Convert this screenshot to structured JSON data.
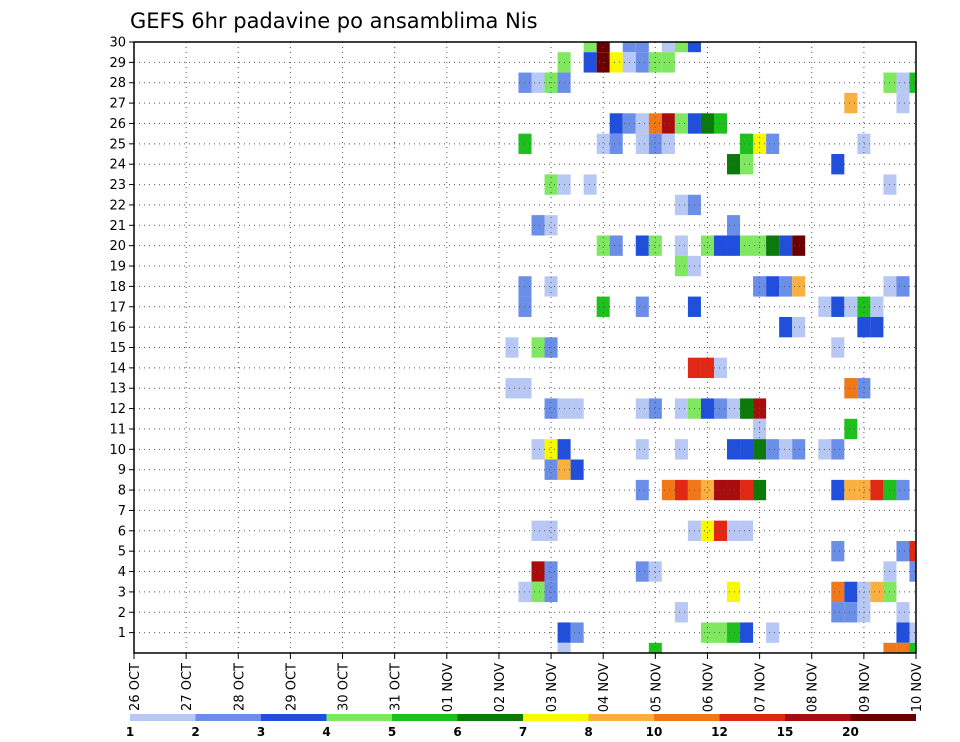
{
  "chart_data": {
    "type": "heatmap",
    "title": "GEFS 6hr padavine po ansamblima Nis",
    "xlabel": "",
    "ylabel": "",
    "x_tick_labels": [
      "26 OCT",
      "27 OCT",
      "28 OCT",
      "29 OCT",
      "30 OCT",
      "31 OCT",
      "01 NOV",
      "02 NOV",
      "03 NOV",
      "04 NOV",
      "05 NOV",
      "06 NOV",
      "07 NOV",
      "08 NOV",
      "09 NOV",
      "10 NOV"
    ],
    "x_range_days": [
      0,
      15
    ],
    "y_tick_labels": [
      1,
      2,
      3,
      4,
      5,
      6,
      7,
      8,
      9,
      10,
      11,
      12,
      13,
      14,
      15,
      16,
      17,
      18,
      19,
      20,
      21,
      22,
      23,
      24,
      25,
      26,
      27,
      28,
      29,
      30
    ],
    "y_range": [
      0,
      30
    ],
    "grid": true,
    "colorbar": {
      "labels": [
        "1",
        "2",
        "3",
        "4",
        "5",
        "6",
        "7",
        "8",
        "10",
        "12",
        "15",
        "20"
      ],
      "colors": [
        "#b8c8f4",
        "#6b8ee8",
        "#1f4fdc",
        "#7fe860",
        "#1ec01e",
        "#0b7a0b",
        "#f8f800",
        "#f8b040",
        "#f07818",
        "#e02814",
        "#a80c0c",
        "#6a0000"
      ]
    },
    "cells": [
      {
        "member": 30,
        "day": 8.75,
        "class": 3
      },
      {
        "member": 30,
        "day": 9.0,
        "class": 11
      },
      {
        "member": 30,
        "day": 9.5,
        "class": 1
      },
      {
        "member": 30,
        "day": 9.75,
        "class": 1
      },
      {
        "member": 30,
        "day": 10.25,
        "class": 0
      },
      {
        "member": 30,
        "day": 10.5,
        "class": 3
      },
      {
        "member": 30,
        "day": 10.75,
        "class": 2
      },
      {
        "member": 29,
        "day": 8.25,
        "class": 3
      },
      {
        "member": 29,
        "day": 8.75,
        "class": 2
      },
      {
        "member": 29,
        "day": 9.0,
        "class": 11
      },
      {
        "member": 29,
        "day": 9.25,
        "class": 6
      },
      {
        "member": 29,
        "day": 9.5,
        "class": 0
      },
      {
        "member": 29,
        "day": 9.75,
        "class": 1
      },
      {
        "member": 29,
        "day": 10.0,
        "class": 3
      },
      {
        "member": 29,
        "day": 10.25,
        "class": 3
      },
      {
        "member": 28,
        "day": 7.5,
        "class": 1
      },
      {
        "member": 28,
        "day": 7.75,
        "class": 0
      },
      {
        "member": 28,
        "day": 8.0,
        "class": 3
      },
      {
        "member": 28,
        "day": 8.25,
        "class": 1
      },
      {
        "member": 28,
        "day": 14.5,
        "class": 3
      },
      {
        "member": 28,
        "day": 14.75,
        "class": 0
      },
      {
        "member": 28,
        "day": 15.0,
        "class": 4
      },
      {
        "member": 27,
        "day": 13.75,
        "class": 7
      },
      {
        "member": 27,
        "day": 14.75,
        "class": 0
      },
      {
        "member": 26,
        "day": 9.25,
        "class": 2
      },
      {
        "member": 26,
        "day": 9.5,
        "class": 1
      },
      {
        "member": 26,
        "day": 9.75,
        "class": 0
      },
      {
        "member": 26,
        "day": 10.0,
        "class": 8
      },
      {
        "member": 26,
        "day": 10.25,
        "class": 10
      },
      {
        "member": 26,
        "day": 10.5,
        "class": 3
      },
      {
        "member": 26,
        "day": 10.75,
        "class": 2
      },
      {
        "member": 26,
        "day": 11.0,
        "class": 5
      },
      {
        "member": 26,
        "day": 11.25,
        "class": 4
      },
      {
        "member": 25,
        "day": 7.5,
        "class": 4
      },
      {
        "member": 25,
        "day": 9.0,
        "class": 0
      },
      {
        "member": 25,
        "day": 9.25,
        "class": 1
      },
      {
        "member": 25,
        "day": 9.75,
        "class": 0
      },
      {
        "member": 25,
        "day": 10.0,
        "class": 1
      },
      {
        "member": 25,
        "day": 10.25,
        "class": 0
      },
      {
        "member": 25,
        "day": 11.75,
        "class": 4
      },
      {
        "member": 25,
        "day": 12.0,
        "class": 6
      },
      {
        "member": 25,
        "day": 12.25,
        "class": 1
      },
      {
        "member": 25,
        "day": 14.0,
        "class": 0
      },
      {
        "member": 24,
        "day": 11.5,
        "class": 5
      },
      {
        "member": 24,
        "day": 11.75,
        "class": 3
      },
      {
        "member": 24,
        "day": 13.5,
        "class": 2
      },
      {
        "member": 23,
        "day": 8.0,
        "class": 3
      },
      {
        "member": 23,
        "day": 8.25,
        "class": 0
      },
      {
        "member": 23,
        "day": 8.75,
        "class": 0
      },
      {
        "member": 23,
        "day": 14.5,
        "class": 0
      },
      {
        "member": 22,
        "day": 10.5,
        "class": 0
      },
      {
        "member": 22,
        "day": 10.75,
        "class": 1
      },
      {
        "member": 21,
        "day": 7.75,
        "class": 1
      },
      {
        "member": 21,
        "day": 8.0,
        "class": 0
      },
      {
        "member": 21,
        "day": 11.5,
        "class": 1
      },
      {
        "member": 20,
        "day": 9.0,
        "class": 3
      },
      {
        "member": 20,
        "day": 9.25,
        "class": 1
      },
      {
        "member": 20,
        "day": 9.75,
        "class": 2
      },
      {
        "member": 20,
        "day": 10.0,
        "class": 3
      },
      {
        "member": 20,
        "day": 10.5,
        "class": 0
      },
      {
        "member": 20,
        "day": 11.0,
        "class": 3
      },
      {
        "member": 20,
        "day": 11.25,
        "class": 2
      },
      {
        "member": 20,
        "day": 11.5,
        "class": 2
      },
      {
        "member": 20,
        "day": 11.75,
        "class": 3
      },
      {
        "member": 20,
        "day": 12.0,
        "class": 3
      },
      {
        "member": 20,
        "day": 12.25,
        "class": 5
      },
      {
        "member": 20,
        "day": 12.5,
        "class": 2
      },
      {
        "member": 20,
        "day": 12.75,
        "class": 11
      },
      {
        "member": 19,
        "day": 10.5,
        "class": 3
      },
      {
        "member": 19,
        "day": 10.75,
        "class": 0
      },
      {
        "member": 18,
        "day": 7.5,
        "class": 1
      },
      {
        "member": 18,
        "day": 8.0,
        "class": 0
      },
      {
        "member": 18,
        "day": 12.0,
        "class": 1
      },
      {
        "member": 18,
        "day": 12.25,
        "class": 2
      },
      {
        "member": 18,
        "day": 12.5,
        "class": 1
      },
      {
        "member": 18,
        "day": 12.75,
        "class": 7
      },
      {
        "member": 18,
        "day": 14.5,
        "class": 0
      },
      {
        "member": 18,
        "day": 14.75,
        "class": 1
      },
      {
        "member": 17,
        "day": 7.5,
        "class": 1
      },
      {
        "member": 17,
        "day": 9.0,
        "class": 4
      },
      {
        "member": 17,
        "day": 9.75,
        "class": 1
      },
      {
        "member": 17,
        "day": 10.75,
        "class": 2
      },
      {
        "member": 17,
        "day": 13.25,
        "class": 0
      },
      {
        "member": 17,
        "day": 13.5,
        "class": 2
      },
      {
        "member": 17,
        "day": 13.75,
        "class": 0
      },
      {
        "member": 17,
        "day": 14.0,
        "class": 4
      },
      {
        "member": 17,
        "day": 14.25,
        "class": 0
      },
      {
        "member": 16,
        "day": 12.5,
        "class": 2
      },
      {
        "member": 16,
        "day": 12.75,
        "class": 0
      },
      {
        "member": 16,
        "day": 14.0,
        "class": 2
      },
      {
        "member": 16,
        "day": 14.25,
        "class": 2
      },
      {
        "member": 15,
        "day": 7.25,
        "class": 0
      },
      {
        "member": 15,
        "day": 7.75,
        "class": 3
      },
      {
        "member": 15,
        "day": 8.0,
        "class": 1
      },
      {
        "member": 15,
        "day": 13.5,
        "class": 0
      },
      {
        "member": 14,
        "day": 10.75,
        "class": 9
      },
      {
        "member": 14,
        "day": 11.0,
        "class": 9
      },
      {
        "member": 14,
        "day": 11.25,
        "class": 0
      },
      {
        "member": 13,
        "day": 7.25,
        "class": 0
      },
      {
        "member": 13,
        "day": 7.5,
        "class": 0
      },
      {
        "member": 13,
        "day": 13.75,
        "class": 8
      },
      {
        "member": 13,
        "day": 14.0,
        "class": 1
      },
      {
        "member": 12,
        "day": 8.0,
        "class": 1
      },
      {
        "member": 12,
        "day": 8.25,
        "class": 0
      },
      {
        "member": 12,
        "day": 8.5,
        "class": 0
      },
      {
        "member": 12,
        "day": 9.75,
        "class": 0
      },
      {
        "member": 12,
        "day": 10.0,
        "class": 1
      },
      {
        "member": 12,
        "day": 10.5,
        "class": 0
      },
      {
        "member": 12,
        "day": 10.75,
        "class": 3
      },
      {
        "member": 12,
        "day": 11.0,
        "class": 2
      },
      {
        "member": 12,
        "day": 11.25,
        "class": 1
      },
      {
        "member": 12,
        "day": 11.5,
        "class": 0
      },
      {
        "member": 12,
        "day": 11.75,
        "class": 5
      },
      {
        "member": 12,
        "day": 12.0,
        "class": 10
      },
      {
        "member": 11,
        "day": 12.0,
        "class": 0
      },
      {
        "member": 11,
        "day": 13.75,
        "class": 4
      },
      {
        "member": 10,
        "day": 7.75,
        "class": 0
      },
      {
        "member": 10,
        "day": 8.0,
        "class": 6
      },
      {
        "member": 10,
        "day": 8.25,
        "class": 2
      },
      {
        "member": 10,
        "day": 9.75,
        "class": 0
      },
      {
        "member": 10,
        "day": 10.5,
        "class": 0
      },
      {
        "member": 10,
        "day": 11.5,
        "class": 2
      },
      {
        "member": 10,
        "day": 11.75,
        "class": 2
      },
      {
        "member": 10,
        "day": 12.0,
        "class": 5
      },
      {
        "member": 10,
        "day": 12.25,
        "class": 1
      },
      {
        "member": 10,
        "day": 12.5,
        "class": 0
      },
      {
        "member": 10,
        "day": 12.75,
        "class": 1
      },
      {
        "member": 10,
        "day": 13.25,
        "class": 0
      },
      {
        "member": 10,
        "day": 13.5,
        "class": 1
      },
      {
        "member": 9,
        "day": 8.0,
        "class": 1
      },
      {
        "member": 9,
        "day": 8.25,
        "class": 7
      },
      {
        "member": 9,
        "day": 8.5,
        "class": 2
      },
      {
        "member": 8,
        "day": 9.75,
        "class": 1
      },
      {
        "member": 8,
        "day": 10.25,
        "class": 8
      },
      {
        "member": 8,
        "day": 10.5,
        "class": 9
      },
      {
        "member": 8,
        "day": 10.75,
        "class": 8
      },
      {
        "member": 8,
        "day": 11.0,
        "class": 7
      },
      {
        "member": 8,
        "day": 11.25,
        "class": 10
      },
      {
        "member": 8,
        "day": 11.5,
        "class": 10
      },
      {
        "member": 8,
        "day": 11.75,
        "class": 9
      },
      {
        "member": 8,
        "day": 12.0,
        "class": 5
      },
      {
        "member": 8,
        "day": 13.5,
        "class": 2
      },
      {
        "member": 8,
        "day": 13.75,
        "class": 7
      },
      {
        "member": 8,
        "day": 14.0,
        "class": 7
      },
      {
        "member": 8,
        "day": 14.25,
        "class": 9
      },
      {
        "member": 8,
        "day": 14.5,
        "class": 4
      },
      {
        "member": 8,
        "day": 14.75,
        "class": 1
      },
      {
        "member": 6,
        "day": 7.75,
        "class": 0
      },
      {
        "member": 6,
        "day": 8.0,
        "class": 0
      },
      {
        "member": 6,
        "day": 10.75,
        "class": 0
      },
      {
        "member": 6,
        "day": 11.0,
        "class": 6
      },
      {
        "member": 6,
        "day": 11.25,
        "class": 9
      },
      {
        "member": 6,
        "day": 11.5,
        "class": 0
      },
      {
        "member": 6,
        "day": 11.75,
        "class": 0
      },
      {
        "member": 5,
        "day": 13.5,
        "class": 1
      },
      {
        "member": 5,
        "day": 14.75,
        "class": 1
      },
      {
        "member": 5,
        "day": 15.0,
        "class": 9
      },
      {
        "member": 4,
        "day": 7.75,
        "class": 10
      },
      {
        "member": 4,
        "day": 8.0,
        "class": 1
      },
      {
        "member": 4,
        "day": 9.75,
        "class": 1
      },
      {
        "member": 4,
        "day": 10.0,
        "class": 0
      },
      {
        "member": 4,
        "day": 14.5,
        "class": 0
      },
      {
        "member": 4,
        "day": 15.0,
        "class": 1
      },
      {
        "member": 3,
        "day": 7.5,
        "class": 0
      },
      {
        "member": 3,
        "day": 7.75,
        "class": 3
      },
      {
        "member": 3,
        "day": 8.0,
        "class": 1
      },
      {
        "member": 3,
        "day": 11.5,
        "class": 6
      },
      {
        "member": 3,
        "day": 13.5,
        "class": 8
      },
      {
        "member": 3,
        "day": 13.75,
        "class": 2
      },
      {
        "member": 3,
        "day": 14.0,
        "class": 0
      },
      {
        "member": 3,
        "day": 14.25,
        "class": 7
      },
      {
        "member": 3,
        "day": 14.5,
        "class": 3
      },
      {
        "member": 2,
        "day": 10.5,
        "class": 0
      },
      {
        "member": 2,
        "day": 13.5,
        "class": 1
      },
      {
        "member": 2,
        "day": 13.75,
        "class": 1
      },
      {
        "member": 2,
        "day": 14.0,
        "class": 0
      },
      {
        "member": 2,
        "day": 14.75,
        "class": 0
      },
      {
        "member": 1,
        "day": 8.25,
        "class": 2
      },
      {
        "member": 1,
        "day": 8.5,
        "class": 1
      },
      {
        "member": 1,
        "day": 11.0,
        "class": 3
      },
      {
        "member": 1,
        "day": 11.25,
        "class": 3
      },
      {
        "member": 1,
        "day": 11.5,
        "class": 4
      },
      {
        "member": 1,
        "day": 11.75,
        "class": 2
      },
      {
        "member": 1,
        "day": 12.25,
        "class": 0
      },
      {
        "member": 1,
        "day": 14.75,
        "class": 2
      },
      {
        "member": 1,
        "day": 15.0,
        "class": 0
      },
      {
        "member": 0,
        "day": 8.25,
        "class": 0
      },
      {
        "member": 0,
        "day": 10.0,
        "class": 4
      },
      {
        "member": 0,
        "day": 14.5,
        "class": 8
      },
      {
        "member": 0,
        "day": 14.75,
        "class": 8
      },
      {
        "member": 0,
        "day": 15.0,
        "class": 4
      }
    ]
  }
}
